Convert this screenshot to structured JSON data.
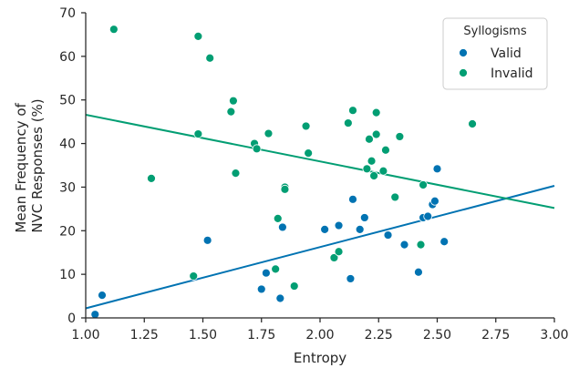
{
  "chart_data": {
    "type": "scatter",
    "xlabel": "Entropy",
    "ylabel_lines": [
      "Mean Frequency of",
      "NVC Responses (%)"
    ],
    "xlim": [
      1.0,
      3.0
    ],
    "ylim": [
      0,
      70
    ],
    "x_ticks": [
      "1.00",
      "1.25",
      "1.50",
      "1.75",
      "2.00",
      "2.25",
      "2.50",
      "2.75",
      "3.00"
    ],
    "y_ticks": [
      "0",
      "10",
      "20",
      "30",
      "40",
      "50",
      "60",
      "70"
    ],
    "grid": false,
    "legend": {
      "title": "Syllogisms",
      "placement": "top-right"
    },
    "series": [
      {
        "name": "Valid",
        "color": "#0173b2",
        "trend_line": [
          [
            1.0,
            2.2
          ],
          [
            3.0,
            30.3
          ]
        ],
        "points": [
          [
            1.04,
            0.8
          ],
          [
            1.07,
            5.2
          ],
          [
            1.52,
            17.8
          ],
          [
            1.75,
            6.6
          ],
          [
            1.77,
            10.3
          ],
          [
            1.83,
            4.5
          ],
          [
            1.84,
            20.8
          ],
          [
            2.02,
            20.3
          ],
          [
            2.08,
            21.2
          ],
          [
            2.13,
            9.0
          ],
          [
            2.14,
            27.2
          ],
          [
            2.17,
            20.3
          ],
          [
            2.19,
            23.0
          ],
          [
            2.29,
            19.0
          ],
          [
            2.36,
            16.8
          ],
          [
            2.42,
            10.5
          ],
          [
            2.44,
            23.0
          ],
          [
            2.46,
            23.3
          ],
          [
            2.48,
            26.0
          ],
          [
            2.49,
            26.8
          ],
          [
            2.5,
            34.2
          ],
          [
            2.53,
            17.5
          ]
        ]
      },
      {
        "name": "Invalid",
        "color": "#029e73",
        "trend_line": [
          [
            1.0,
            46.6
          ],
          [
            3.0,
            25.2
          ]
        ],
        "points": [
          [
            1.12,
            66.2
          ],
          [
            1.28,
            32.0
          ],
          [
            1.46,
            9.6
          ],
          [
            1.48,
            64.6
          ],
          [
            1.48,
            42.2
          ],
          [
            1.53,
            59.6
          ],
          [
            1.62,
            47.3
          ],
          [
            1.63,
            49.8
          ],
          [
            1.64,
            33.2
          ],
          [
            1.72,
            40.0
          ],
          [
            1.73,
            38.8
          ],
          [
            1.78,
            42.3
          ],
          [
            1.81,
            11.2
          ],
          [
            1.82,
            22.8
          ],
          [
            1.85,
            30.0
          ],
          [
            1.85,
            29.5
          ],
          [
            1.89,
            7.3
          ],
          [
            1.94,
            44.0
          ],
          [
            1.95,
            37.8
          ],
          [
            2.06,
            13.8
          ],
          [
            2.08,
            15.2
          ],
          [
            2.12,
            44.7
          ],
          [
            2.14,
            47.6
          ],
          [
            2.2,
            34.2
          ],
          [
            2.21,
            41.0
          ],
          [
            2.22,
            36.0
          ],
          [
            2.23,
            32.6
          ],
          [
            2.24,
            42.1
          ],
          [
            2.24,
            47.1
          ],
          [
            2.27,
            33.7
          ],
          [
            2.28,
            38.5
          ],
          [
            2.32,
            27.7
          ],
          [
            2.34,
            41.6
          ],
          [
            2.43,
            16.8
          ],
          [
            2.44,
            30.5
          ],
          [
            2.65,
            44.5
          ]
        ]
      }
    ]
  }
}
